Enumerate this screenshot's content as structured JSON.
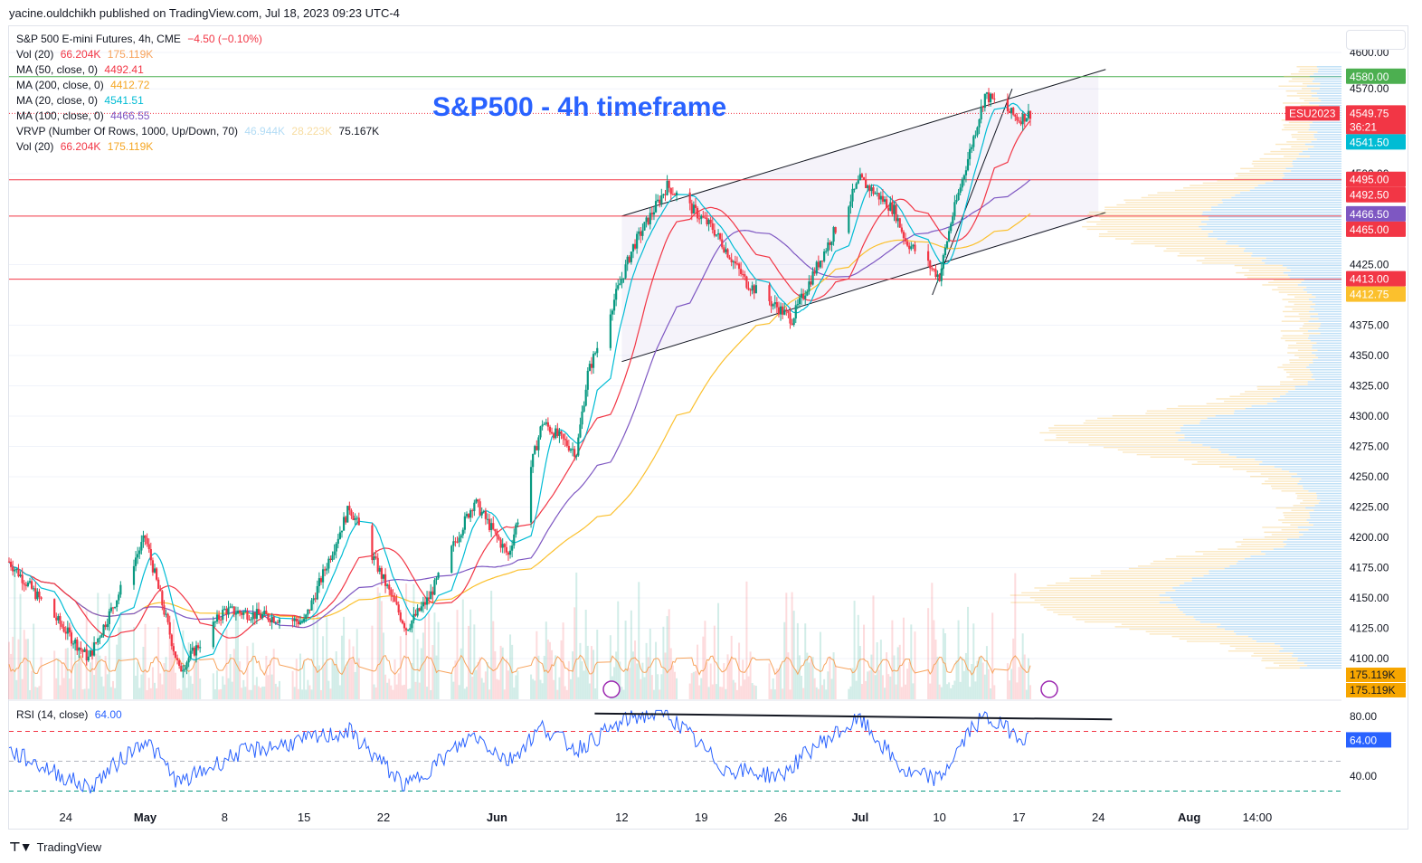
{
  "publisher": "yacine.ouldchikh published on TradingView.com, Jul 18, 2023 09:23 UTC-4",
  "footer_brand": "TradingView",
  "colors": {
    "up": "#089981",
    "down": "#f23645",
    "ma50": "#f23645",
    "ma200": "#fbc02d",
    "ma20": "#00bcd4",
    "ma100": "#7e57c2",
    "vol_ma": "#f7a35c",
    "rsi": "#2962ff",
    "annotation": "#2962ff",
    "green_line": "#4caf50",
    "support": "#f23645"
  },
  "legend": {
    "symbol": "S&P 500 E-mini Futures, 4h, CME",
    "change": "−4.50 (−0.10%)",
    "vol1_label": "Vol (20)",
    "vol1_a": "66.204K",
    "vol1_b": "175.119K",
    "ma50_label": "MA (50, close, 0)",
    "ma50_val": "4492.41",
    "ma200_label": "MA (200, close, 0)",
    "ma200_val": "4412.72",
    "ma20_label": "MA (20, close, 0)",
    "ma20_val": "4541.51",
    "ma100_label": "MA (100, close, 0)",
    "ma100_val": "4466.55",
    "vrvp_label": "VRVP (Number Of Rows, 1000, Up/Down, 70)",
    "vrvp_a": "46.944K",
    "vrvp_b": "28.223K",
    "vrvp_c": "75.167K",
    "vol2_label": "Vol (20)",
    "vol2_a": "66.204K",
    "vol2_b": "175.119K"
  },
  "rsi_legend": {
    "label": "RSI (14, close)",
    "value": "64.00"
  },
  "chart_data": {
    "type": "candlestick",
    "title": "S&P500 - 4h timeframe",
    "symbol": "ESU2023",
    "timeframe": "4h",
    "y_axis": {
      "range": [
        4085,
        4592
      ],
      "ticks": [
        "4100.00",
        "4125.00",
        "4150.00",
        "4175.00",
        "4200.00",
        "4225.00",
        "4250.00",
        "4275.00",
        "4300.00",
        "4325.00",
        "4350.00",
        "4375.00",
        "4425.00",
        "4500.00",
        "4570.00",
        "4600.00"
      ]
    },
    "x_axis": {
      "labels": [
        "24",
        "May",
        "8",
        "15",
        "22",
        "Jun",
        "12",
        "19",
        "26",
        "Jul",
        "10",
        "17",
        "24",
        "Aug",
        "14:00"
      ],
      "bold_labels": [
        "May",
        "Jun",
        "Jul",
        "Aug"
      ]
    },
    "ohlc_anchor_points": [
      {
        "date": "Apr 19",
        "close": 4180
      },
      {
        "date": "Apr 26",
        "close": 4100
      },
      {
        "date": "May 1",
        "close": 4200
      },
      {
        "date": "May 4",
        "close": 4090
      },
      {
        "date": "May 8",
        "close": 4140
      },
      {
        "date": "May 15",
        "close": 4130
      },
      {
        "date": "May 19",
        "close": 4225
      },
      {
        "date": "May 24",
        "close": 4125
      },
      {
        "date": "May 26",
        "close": 4150
      },
      {
        "date": "May 30",
        "close": 4230
      },
      {
        "date": "Jun 2",
        "close": 4185
      },
      {
        "date": "Jun 5",
        "close": 4295
      },
      {
        "date": "Jun 8",
        "close": 4270
      },
      {
        "date": "Jun 9",
        "close": 4335
      },
      {
        "date": "Jun 13",
        "close": 4440
      },
      {
        "date": "Jun 16",
        "close": 4490
      },
      {
        "date": "Jun 20",
        "close": 4455
      },
      {
        "date": "Jun 23",
        "close": 4410
      },
      {
        "date": "Jun 27",
        "close": 4380
      },
      {
        "date": "Jun 29",
        "close": 4420
      },
      {
        "date": "Jul 3",
        "close": 4495
      },
      {
        "date": "Jul 6",
        "close": 4470
      },
      {
        "date": "Jul 7",
        "close": 4445
      },
      {
        "date": "Jul 10",
        "close": 4415
      },
      {
        "date": "Jul 11",
        "close": 4460
      },
      {
        "date": "Jul 13",
        "close": 4530
      },
      {
        "date": "Jul 14",
        "close": 4565
      },
      {
        "date": "Jul 17",
        "close": 4545
      },
      {
        "date": "Jul 18",
        "close": 4549.75
      }
    ],
    "price_badges": [
      {
        "price": 4580.0,
        "label": "4580.00",
        "bg": "#4caf50"
      },
      {
        "price": 4549.75,
        "label": "4549.75",
        "bg": "#f23645",
        "symbol": "ESU2023",
        "countdown": "36:21"
      },
      {
        "price": 4541.5,
        "label": "4541.50",
        "bg": "#00bcd4"
      },
      {
        "price": 4495.0,
        "label": "4495.00",
        "bg": "#f23645"
      },
      {
        "price": 4492.5,
        "label": "4492.50",
        "bg": "#f23645"
      },
      {
        "price": 4466.5,
        "label": "4466.50",
        "bg": "#7e57c2"
      },
      {
        "price": 4465.0,
        "label": "4465.00",
        "bg": "#f23645"
      },
      {
        "price": 4413.0,
        "label": "4413.00",
        "bg": "#f23645"
      },
      {
        "price": 4412.75,
        "label": "4412.75",
        "bg": "#fbc02d"
      }
    ],
    "horizontal_levels": [
      {
        "price": 4580,
        "color": "#4caf50"
      },
      {
        "price": 4495,
        "color": "#f23645"
      },
      {
        "price": 4465,
        "color": "#f23645"
      },
      {
        "price": 4413,
        "color": "#f23645"
      }
    ],
    "channel": {
      "upper": [
        [
          "Jun 12",
          4465
        ],
        [
          "Jul 24",
          4583
        ]
      ],
      "lower": [
        [
          "Jun 12",
          4345
        ],
        [
          "Jul 24",
          4465
        ]
      ]
    },
    "volume_badges": [
      "175.119K",
      "175.119K"
    ],
    "rsi": {
      "period": 14,
      "current": 64.0,
      "y_ticks": [
        "80.00",
        "40.00"
      ],
      "overbought": 70,
      "midline": 50,
      "oversold": 30,
      "anchor_points": [
        {
          "date": "Apr 19",
          "value": 57
        },
        {
          "date": "Apr 26",
          "value": 32
        },
        {
          "date": "May 1",
          "value": 65
        },
        {
          "date": "May 4",
          "value": 35
        },
        {
          "date": "May 9",
          "value": 55
        },
        {
          "date": "May 19",
          "value": 70
        },
        {
          "date": "May 24",
          "value": 33
        },
        {
          "date": "May 30",
          "value": 68
        },
        {
          "date": "Jun 2",
          "value": 50
        },
        {
          "date": "Jun 5",
          "value": 73
        },
        {
          "date": "Jun 8",
          "value": 58
        },
        {
          "date": "Jun 13",
          "value": 80
        },
        {
          "date": "Jun 16",
          "value": 82
        },
        {
          "date": "Jun 21",
          "value": 45
        },
        {
          "date": "Jun 26",
          "value": 40
        },
        {
          "date": "Jun 29",
          "value": 60
        },
        {
          "date": "Jul 3",
          "value": 78
        },
        {
          "date": "Jul 7",
          "value": 42
        },
        {
          "date": "Jul 10",
          "value": 38
        },
        {
          "date": "Jul 13",
          "value": 74
        },
        {
          "date": "Jul 14",
          "value": 79
        },
        {
          "date": "Jul 17",
          "value": 68
        },
        {
          "date": "Jul 18",
          "value": 64
        }
      ],
      "divergence_line": [
        [
          "Jun 12",
          82
        ],
        [
          "Jul 24",
          78
        ]
      ]
    }
  }
}
